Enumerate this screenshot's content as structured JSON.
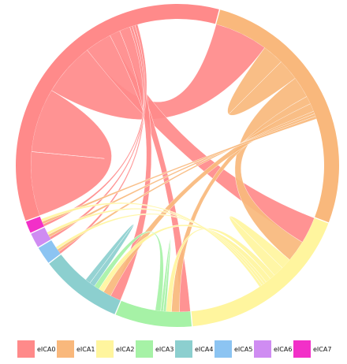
{
  "chart_data": {
    "type": "chord",
    "title": "",
    "legend_position": "bottom",
    "groups": [
      {
        "name": "eICA0",
        "color": "#FF8A8A"
      },
      {
        "name": "eICA1",
        "color": "#F9B87C"
      },
      {
        "name": "eICA2",
        "color": "#FFF59E"
      },
      {
        "name": "eICA3",
        "color": "#A6F2A6"
      },
      {
        "name": "eICA4",
        "color": "#8CCFCF"
      },
      {
        "name": "eICA5",
        "color": "#8CC4F2"
      },
      {
        "name": "eICA6",
        "color": "#CF8CF2"
      },
      {
        "name": "eICA7",
        "color": "#F230C8"
      }
    ],
    "group_totals": [
      118,
      90,
      60,
      26,
      28,
      6,
      5,
      4
    ],
    "links": [
      {
        "source": "eICA0",
        "target": "eICA0",
        "value": 24
      },
      {
        "source": "eICA0",
        "target": "eICA1",
        "value": 20
      },
      {
        "source": "eICA0",
        "target": "eICA2",
        "value": 10
      },
      {
        "source": "eICA0",
        "target": "eICA3",
        "value": 4
      },
      {
        "source": "eICA0",
        "target": "eICA4",
        "value": 4
      },
      {
        "source": "eICA0",
        "target": "eICA5",
        "value": 1
      },
      {
        "source": "eICA0",
        "target": "eICA6",
        "value": 1
      },
      {
        "source": "eICA0",
        "target": "eICA7",
        "value": 1
      },
      {
        "source": "eICA1",
        "target": "eICA1",
        "value": 8
      },
      {
        "source": "eICA1",
        "target": "eICA2",
        "value": 8
      },
      {
        "source": "eICA1",
        "target": "eICA3",
        "value": 3
      },
      {
        "source": "eICA1",
        "target": "eICA4",
        "value": 3
      },
      {
        "source": "eICA1",
        "target": "eICA5",
        "value": 1
      },
      {
        "source": "eICA1",
        "target": "eICA6",
        "value": 1
      },
      {
        "source": "eICA1",
        "target": "eICA7",
        "value": 1
      },
      {
        "source": "eICA2",
        "target": "eICA2",
        "value": 4
      },
      {
        "source": "eICA2",
        "target": "eICA3",
        "value": 2
      },
      {
        "source": "eICA2",
        "target": "eICA4",
        "value": 2
      },
      {
        "source": "eICA2",
        "target": "eICA5",
        "value": 1
      },
      {
        "source": "eICA2",
        "target": "eICA6",
        "value": 1
      },
      {
        "source": "eICA2",
        "target": "eICA7",
        "value": 1
      },
      {
        "source": "eICA3",
        "target": "eICA3",
        "value": 1
      },
      {
        "source": "eICA3",
        "target": "eICA4",
        "value": 2
      },
      {
        "source": "eICA4",
        "target": "eICA4",
        "value": 2
      }
    ]
  }
}
